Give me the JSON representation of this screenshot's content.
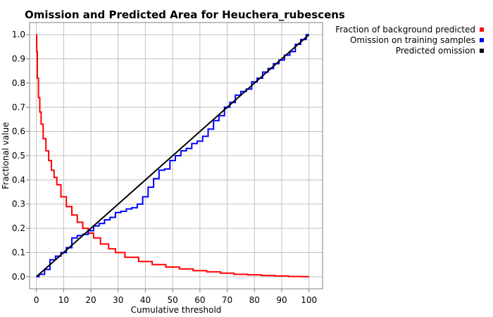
{
  "chart_data": {
    "type": "line",
    "title": "Omission and Predicted Area for Heuchera_rubescens",
    "xlabel": "Cumulative threshold",
    "ylabel": "Fractional value",
    "xlim": [
      -2.5,
      105
    ],
    "ylim": [
      -0.05,
      1.05
    ],
    "x_ticks": [
      "0",
      "10",
      "20",
      "30",
      "40",
      "50",
      "60",
      "70",
      "80",
      "90",
      "100"
    ],
    "y_ticks": [
      "0.0",
      "0.1",
      "0.2",
      "0.3",
      "0.4",
      "0.5",
      "0.6",
      "0.7",
      "0.8",
      "0.9",
      "1.0"
    ],
    "grid": true,
    "legend_position": "top-right",
    "series": [
      {
        "name": "Fraction of background predicted",
        "color": "#ff0000",
        "x": [
          0,
          0.2,
          0.5,
          1,
          1.5,
          2,
          3,
          4,
          5,
          6,
          7,
          8,
          10,
          12,
          14,
          16,
          18,
          20,
          22,
          25,
          28,
          30,
          35,
          40,
          45,
          50,
          55,
          60,
          65,
          70,
          75,
          80,
          85,
          90,
          95,
          100
        ],
        "y": [
          1.0,
          0.93,
          0.82,
          0.74,
          0.68,
          0.63,
          0.57,
          0.52,
          0.48,
          0.44,
          0.41,
          0.38,
          0.33,
          0.29,
          0.255,
          0.225,
          0.2,
          0.18,
          0.16,
          0.135,
          0.115,
          0.1,
          0.08,
          0.063,
          0.05,
          0.04,
          0.032,
          0.025,
          0.02,
          0.015,
          0.01,
          0.008,
          0.005,
          0.003,
          0.001,
          0.0
        ]
      },
      {
        "name": "Omission on training samples",
        "color": "#0000ff",
        "x": [
          0,
          2,
          4,
          6,
          8,
          10,
          12,
          14,
          16,
          18,
          20,
          22,
          24,
          26,
          28,
          30,
          32,
          34,
          36,
          38,
          40,
          42,
          44,
          46,
          48,
          50,
          52,
          54,
          56,
          58,
          60,
          62,
          64,
          66,
          68,
          70,
          72,
          74,
          76,
          78,
          80,
          82,
          84,
          86,
          88,
          90,
          92,
          94,
          96,
          98,
          100
        ],
        "y": [
          0.0,
          0.01,
          0.03,
          0.07,
          0.085,
          0.1,
          0.12,
          0.16,
          0.17,
          0.175,
          0.19,
          0.21,
          0.22,
          0.235,
          0.245,
          0.265,
          0.27,
          0.28,
          0.285,
          0.3,
          0.33,
          0.37,
          0.405,
          0.44,
          0.445,
          0.48,
          0.5,
          0.52,
          0.53,
          0.55,
          0.56,
          0.58,
          0.61,
          0.645,
          0.665,
          0.7,
          0.72,
          0.75,
          0.765,
          0.775,
          0.805,
          0.82,
          0.845,
          0.86,
          0.88,
          0.895,
          0.915,
          0.93,
          0.96,
          0.98,
          1.0
        ]
      },
      {
        "name": "Predicted omission",
        "color": "#000000",
        "x": [
          0,
          100
        ],
        "y": [
          0.0,
          1.0
        ]
      }
    ]
  }
}
